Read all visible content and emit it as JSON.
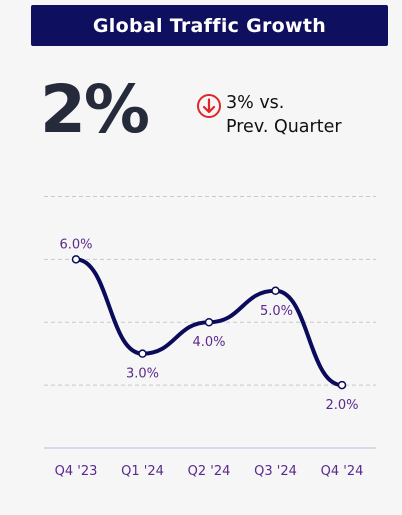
{
  "title": "Global Traffic Growth",
  "kpi": {
    "value": "2%",
    "change_text": "3% vs.",
    "change_period": "Prev. Quarter",
    "direction_icon": "arrow-down-circle-icon",
    "direction_color": "#e0262b"
  },
  "colors": {
    "title_bg": "#0f0f5f",
    "line": "#0b0b5c",
    "label": "#5a2a8c",
    "gridline": "#c8c8c8",
    "axis": "#c7b3e6"
  },
  "chart_data": {
    "type": "line",
    "categories": [
      "Q4 '23",
      "Q1 '24",
      "Q2 '24",
      "Q3 '24",
      "Q4 '24"
    ],
    "values": [
      6.0,
      3.0,
      4.0,
      5.0,
      2.0
    ],
    "labels": [
      "6.0%",
      "3.0%",
      "4.0%",
      "5.0%",
      "2.0%"
    ],
    "label_position": [
      "above",
      "below",
      "below",
      "below",
      "below"
    ],
    "ylim": [
      0,
      9
    ],
    "gridlines": [
      2,
      4,
      6,
      8
    ],
    "grid": true,
    "title": "",
    "xlabel": "",
    "ylabel": ""
  }
}
